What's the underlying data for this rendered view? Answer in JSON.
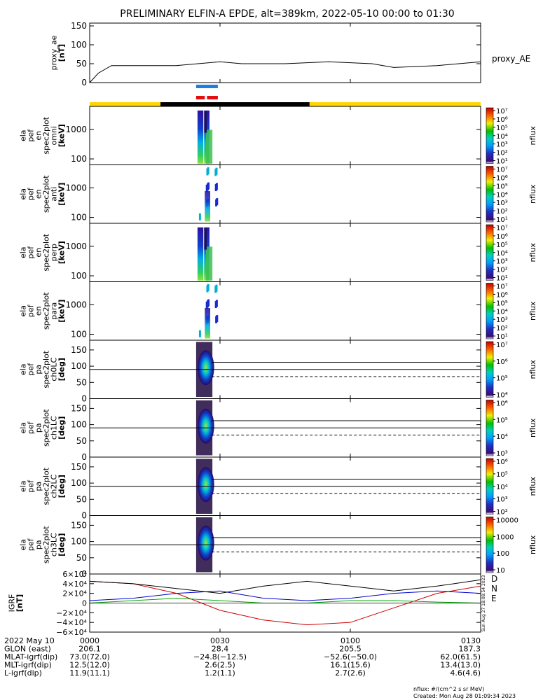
{
  "title": "PRELIMINARY ELFIN-A EPDE, alt=389km, 2022-05-10 00:00 to 01:30",
  "colors": {
    "orbit_yellow": "#ffd400",
    "orbit_black": "#000000",
    "bar_blue": "#1e7fe0",
    "bar_red": "#e01010",
    "igrf_d": "#cc0000",
    "igrf_n": "#0000cc",
    "igrf_e": "#00aa00"
  },
  "panels": [
    {
      "ylabel": [
        "proxy_ae",
        "[nT]"
      ],
      "ticks": [
        "0",
        "50",
        "100",
        "150"
      ],
      "right_label": "proxy_AE"
    },
    {
      "ylabel": [
        "ela",
        "pef",
        "en",
        "spec2plot",
        "omni",
        "[keV]"
      ],
      "ticks": [
        "100",
        "1000"
      ],
      "cbar_ticks": [
        "10¹",
        "10²",
        "10³",
        "10⁴",
        "10⁵",
        "10⁶",
        "10⁷"
      ],
      "cbar_label": "nflux"
    },
    {
      "ylabel": [
        "ela",
        "pef",
        "en",
        "spec2plot",
        "anti",
        "[keV]"
      ],
      "ticks": [
        "100",
        "1000"
      ],
      "cbar_ticks": [
        "10¹",
        "10²",
        "10³",
        "10⁴",
        "10⁵",
        "10⁶",
        "10⁷"
      ],
      "cbar_label": "nflux"
    },
    {
      "ylabel": [
        "ela",
        "pef",
        "en",
        "spec2plot",
        "perp",
        "[keV]"
      ],
      "ticks": [
        "100",
        "1000"
      ],
      "cbar_ticks": [
        "10¹",
        "10²",
        "10³",
        "10⁴",
        "10⁵",
        "10⁶",
        "10⁷"
      ],
      "cbar_label": "nflux"
    },
    {
      "ylabel": [
        "ela",
        "pef",
        "en",
        "spec2plot",
        "para",
        "[keV]"
      ],
      "ticks": [
        "100",
        "1000"
      ],
      "cbar_ticks": [
        "10¹",
        "10²",
        "10³",
        "10⁴",
        "10⁵",
        "10⁶",
        "10⁷"
      ],
      "cbar_label": "nflux"
    },
    {
      "ylabel": [
        "ela",
        "pef",
        "pa",
        "spec2plot",
        "ch0LC",
        "[deg]"
      ],
      "ticks": [
        "0",
        "50",
        "100",
        "150"
      ],
      "cbar_ticks": [
        "10⁴",
        "10⁵",
        "10⁶",
        "10⁷"
      ],
      "cbar_label": "nflux"
    },
    {
      "ylabel": [
        "ela",
        "pef",
        "pa",
        "spec2plot",
        "ch1LC",
        "[deg]"
      ],
      "ticks": [
        "0",
        "50",
        "100",
        "150"
      ],
      "cbar_ticks": [
        "10³",
        "10⁴",
        "10⁵",
        "10⁶"
      ],
      "cbar_label": "nflux"
    },
    {
      "ylabel": [
        "ela",
        "pef",
        "pa",
        "spec2plot",
        "ch2LC",
        "[deg]"
      ],
      "ticks": [
        "0",
        "50",
        "100",
        "150"
      ],
      "cbar_ticks": [
        "10²",
        "10³",
        "10⁴",
        "10⁵",
        "10⁶"
      ],
      "cbar_label": "nflux"
    },
    {
      "ylabel": [
        "ela",
        "pef",
        "pa",
        "spec2plot",
        "ch3LC",
        "[deg]"
      ],
      "ticks": [
        "0",
        "50",
        "100",
        "150"
      ],
      "cbar_ticks": [
        "10",
        "100",
        "1000",
        "10000"
      ],
      "cbar_label": "nflux"
    },
    {
      "ylabel": [
        "IGRF",
        "[nT]"
      ],
      "ticks": [
        "−6×10⁴",
        "−4×10⁴",
        "−2×10⁴",
        "0",
        "2×10⁴",
        "4×10⁴",
        "6×10⁴"
      ],
      "legend": [
        "D",
        "N",
        "E"
      ]
    }
  ],
  "side_stamp": "Sun Aug 27 18:08:54 2023",
  "footer": {
    "rows": [
      {
        "label": "2022 May 10",
        "values": [
          "0000",
          "0030",
          "0100",
          "0130"
        ]
      },
      {
        "label": "GLON (east)",
        "values": [
          "206.1",
          "28.4",
          "205.5",
          "187.3"
        ]
      },
      {
        "label": "MLAT-igrf(dip)",
        "values": [
          "73.0(72.0)",
          "−24.8(−12.5)",
          "−52.6(−50.0)",
          "62.0(61.5)"
        ]
      },
      {
        "label": "MLT-igrf(dip)",
        "values": [
          "12.5(12.0)",
          "2.6(2.5)",
          "16.1(15.6)",
          "13.4(13.0)"
        ]
      },
      {
        "label": "L-igrf(dip)",
        "values": [
          "11.9(11.1)",
          "1.2(1.1)",
          "2.7(2.6)",
          "4.6(4.6)"
        ]
      }
    ],
    "units_note": "nflux: #/(cm^2 s sr MeV)",
    "created": "Created: Mon Aug 28 01:09:34 2023"
  },
  "chart_data": {
    "type": "multi-panel time series and spectrograms",
    "x_range": [
      "00:00",
      "01:30"
    ],
    "x_ticks": [
      "0000",
      "0030",
      "0100",
      "0130"
    ],
    "proxy_ae": {
      "type": "line",
      "ylim": [
        0,
        150
      ],
      "x_min": [
        0,
        2,
        5,
        10,
        20,
        30,
        35,
        45,
        55,
        65,
        70,
        80,
        90
      ],
      "values": [
        0,
        25,
        45,
        45,
        45,
        55,
        50,
        50,
        55,
        50,
        40,
        45,
        55
      ]
    },
    "energy_spectrograms": {
      "type": "heatmap",
      "ylim_keV": [
        63,
        6000
      ],
      "active_window_min": [
        24.5,
        29.5
      ],
      "zlim": [
        10,
        10000000
      ],
      "panels": [
        "omni",
        "anti",
        "perp",
        "para"
      ]
    },
    "pitch_angle_spectrograms": {
      "type": "heatmap",
      "ylim_deg": [
        0,
        180
      ],
      "active_window_min": [
        24.5,
        29.5
      ],
      "panels": [
        "ch0LC",
        "ch1LC",
        "ch2LC",
        "ch3LC"
      ],
      "reference_lines_deg": {
        "solid_upper": 112,
        "solid_middle": 90,
        "dashed_lower": 68
      }
    },
    "igrf": {
      "type": "line",
      "ylim": [
        -60000,
        60000
      ],
      "series": [
        {
          "name": "D",
          "x_min": [
            0,
            10,
            20,
            30,
            40,
            50,
            60,
            70,
            80,
            90
          ],
          "values": [
            45000,
            40000,
            20000,
            -15000,
            -35000,
            -45000,
            -40000,
            -10000,
            20000,
            35000
          ]
        },
        {
          "name": "N",
          "x_min": [
            0,
            10,
            20,
            30,
            40,
            50,
            60,
            70,
            80,
            90
          ],
          "values": [
            5000,
            10000,
            20000,
            25000,
            10000,
            5000,
            10000,
            20000,
            25000,
            20000
          ]
        },
        {
          "name": "E",
          "x_min": [
            0,
            10,
            20,
            30,
            40,
            50,
            60,
            70,
            80,
            90
          ],
          "values": [
            0,
            5000,
            10000,
            5000,
            0,
            0,
            5000,
            5000,
            2000,
            0
          ]
        },
        {
          "name": "",
          "x_min": [
            0,
            10,
            20,
            30,
            40,
            50,
            60,
            70,
            80,
            90
          ],
          "values": [
            45000,
            40000,
            30000,
            20000,
            35000,
            45000,
            35000,
            25000,
            35000,
            48000
          ]
        }
      ]
    }
  }
}
